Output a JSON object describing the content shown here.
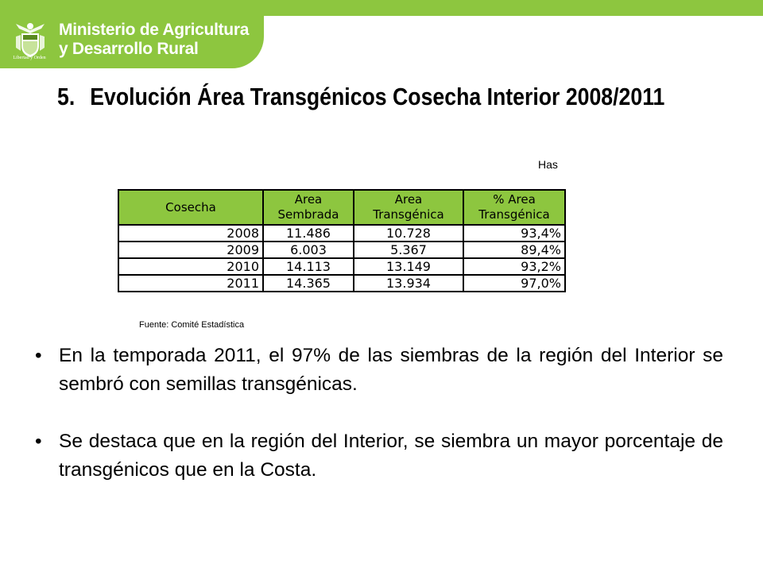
{
  "header": {
    "ministry_line1": "Ministerio de Agricultura",
    "ministry_line2": "y Desarrollo Rural",
    "seal_motto": "Libertad y Orden",
    "brand_color": "#8dc63f"
  },
  "slide": {
    "number": "5.",
    "title": "Evolución Área Transgénicos Cosecha Interior  2008/2011",
    "unit": "Has",
    "source": "Fuente: Comité Estadística"
  },
  "table": {
    "headers": [
      {
        "line1": "",
        "line2": "Cosecha"
      },
      {
        "line1": "Area",
        "line2": "Sembrada"
      },
      {
        "line1": "Area",
        "line2": "Transgénica"
      },
      {
        "line1": "% Area",
        "line2": "Transgénica"
      }
    ],
    "rows": [
      {
        "cosecha": "2008",
        "sembrada": "11.486",
        "transgenica": "10.728",
        "pct": "93,4%"
      },
      {
        "cosecha": "2009",
        "sembrada": "6.003",
        "transgenica": "5.367",
        "pct": "89,4%"
      },
      {
        "cosecha": "2010",
        "sembrada": "14.113",
        "transgenica": "13.149",
        "pct": "93,2%"
      },
      {
        "cosecha": "2011",
        "sembrada": "14.365",
        "transgenica": "13.934",
        "pct": "97,0%"
      }
    ]
  },
  "bullets": [
    {
      "marker": "•",
      "text": "En la temporada 2011, el 97% de las siembras de la región del Interior se sembró con semillas transgénicas."
    },
    {
      "marker": "•",
      "text": "Se destaca que en la región del Interior, se siembra un mayor porcentaje de transgénicos que en la Costa."
    }
  ]
}
